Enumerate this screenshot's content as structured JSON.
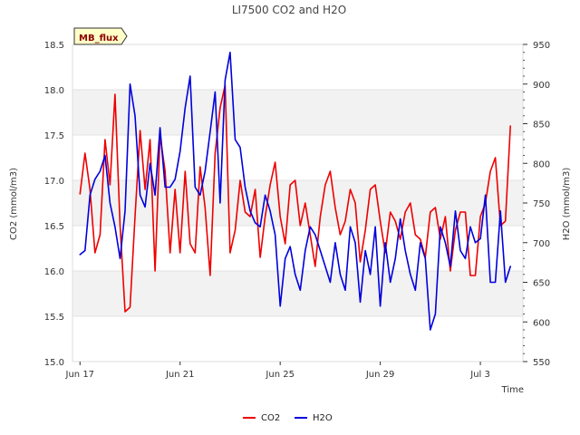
{
  "chart_data": {
    "type": "line",
    "title": "LI7500 CO2 and H2O",
    "tag": "MB_flux",
    "xlabel": "Time",
    "ylabel_left": "CO2 (mmol/m3)",
    "ylabel_right": "H2O (mmol/m3)",
    "x_ticks": [
      {
        "day": 0,
        "label": "Jun 17"
      },
      {
        "day": 4,
        "label": "Jun 21"
      },
      {
        "day": 8,
        "label": "Jun 25"
      },
      {
        "day": 12,
        "label": "Jun 29"
      },
      {
        "day": 16,
        "label": "Jul 3"
      }
    ],
    "xlim": [
      -0.3,
      17.7
    ],
    "ylim_left": [
      15.0,
      18.5
    ],
    "yticks_left": [
      "15.0",
      "15.5",
      "16.0",
      "16.5",
      "17.0",
      "17.5",
      "18.0",
      "18.5"
    ],
    "ylim_right": [
      550,
      950
    ],
    "yticks_right": [
      "550",
      "600",
      "650",
      "700",
      "750",
      "800",
      "850",
      "900",
      "950"
    ],
    "bands_left": [
      [
        15.5,
        16.0
      ],
      [
        16.5,
        17.0
      ],
      [
        17.5,
        18.0
      ]
    ],
    "series": [
      {
        "name": "CO2",
        "axis": "left",
        "color": "#ee0000",
        "x": [
          0.0,
          0.2,
          0.4,
          0.6,
          0.8,
          1.0,
          1.2,
          1.4,
          1.6,
          1.8,
          2.0,
          2.2,
          2.4,
          2.6,
          2.8,
          3.0,
          3.2,
          3.4,
          3.6,
          3.8,
          4.0,
          4.2,
          4.4,
          4.6,
          4.8,
          5.0,
          5.2,
          5.4,
          5.6,
          5.8,
          6.0,
          6.2,
          6.4,
          6.6,
          6.8,
          7.0,
          7.2,
          7.4,
          7.6,
          7.8,
          8.0,
          8.2,
          8.4,
          8.6,
          8.8,
          9.0,
          9.2,
          9.4,
          9.6,
          9.8,
          10.0,
          10.2,
          10.4,
          10.6,
          10.8,
          11.0,
          11.2,
          11.4,
          11.6,
          11.8,
          12.0,
          12.2,
          12.4,
          12.6,
          12.8,
          13.0,
          13.2,
          13.4,
          13.6,
          13.8,
          14.0,
          14.2,
          14.4,
          14.6,
          14.8,
          15.0,
          15.2,
          15.4,
          15.6,
          15.8,
          16.0,
          16.2,
          16.4,
          16.6,
          16.8,
          17.0,
          17.2
        ],
        "values": [
          16.85,
          17.3,
          16.9,
          16.2,
          16.4,
          17.45,
          16.95,
          17.95,
          16.5,
          15.55,
          15.6,
          16.6,
          17.55,
          16.9,
          17.45,
          16.0,
          17.5,
          17.1,
          16.2,
          16.9,
          16.2,
          17.1,
          16.3,
          16.2,
          17.15,
          16.7,
          15.95,
          17.3,
          17.8,
          18.05,
          16.2,
          16.45,
          17.0,
          16.65,
          16.6,
          16.9,
          16.15,
          16.6,
          16.95,
          17.2,
          16.6,
          16.3,
          16.95,
          17.0,
          16.5,
          16.75,
          16.4,
          16.05,
          16.6,
          16.95,
          17.1,
          16.7,
          16.4,
          16.55,
          16.9,
          16.75,
          16.1,
          16.45,
          16.9,
          16.95,
          16.55,
          16.2,
          16.65,
          16.55,
          16.35,
          16.65,
          16.75,
          16.4,
          16.35,
          16.15,
          16.65,
          16.7,
          16.35,
          16.6,
          16.0,
          16.45,
          16.65,
          16.65,
          15.95,
          15.95,
          16.6,
          16.75,
          17.1,
          17.25,
          16.5,
          16.55,
          17.6
        ]
      },
      {
        "name": "H2O",
        "axis": "right",
        "color": "#0000dd",
        "x": [
          0.0,
          0.2,
          0.4,
          0.6,
          0.8,
          1.0,
          1.2,
          1.4,
          1.6,
          1.8,
          2.0,
          2.2,
          2.4,
          2.6,
          2.8,
          3.0,
          3.2,
          3.4,
          3.6,
          3.8,
          4.0,
          4.2,
          4.4,
          4.6,
          4.8,
          5.0,
          5.2,
          5.4,
          5.6,
          5.8,
          6.0,
          6.2,
          6.4,
          6.6,
          6.8,
          7.0,
          7.2,
          7.4,
          7.6,
          7.8,
          8.0,
          8.2,
          8.4,
          8.6,
          8.8,
          9.0,
          9.2,
          9.4,
          9.6,
          9.8,
          10.0,
          10.2,
          10.4,
          10.6,
          10.8,
          11.0,
          11.2,
          11.4,
          11.6,
          11.8,
          12.0,
          12.2,
          12.4,
          12.6,
          12.8,
          13.0,
          13.2,
          13.4,
          13.6,
          13.8,
          14.0,
          14.2,
          14.4,
          14.6,
          14.8,
          15.0,
          15.2,
          15.4,
          15.6,
          15.8,
          16.0,
          16.2,
          16.4,
          16.6,
          16.8,
          17.0,
          17.2
        ],
        "values": [
          685,
          690,
          760,
          780,
          790,
          810,
          750,
          720,
          680,
          740,
          900,
          860,
          760,
          745,
          800,
          760,
          845,
          770,
          770,
          780,
          815,
          870,
          910,
          770,
          760,
          790,
          840,
          890,
          750,
          905,
          940,
          830,
          820,
          770,
          740,
          725,
          720,
          760,
          740,
          710,
          620,
          680,
          695,
          660,
          640,
          690,
          720,
          710,
          690,
          670,
          650,
          700,
          660,
          640,
          720,
          700,
          625,
          690,
          660,
          720,
          620,
          700,
          650,
          680,
          730,
          690,
          660,
          640,
          700,
          680,
          590,
          610,
          720,
          700,
          670,
          740,
          690,
          680,
          720,
          700,
          705,
          760,
          650,
          650,
          740,
          650,
          670
        ]
      }
    ],
    "legend": [
      "CO2",
      "H2O"
    ]
  }
}
